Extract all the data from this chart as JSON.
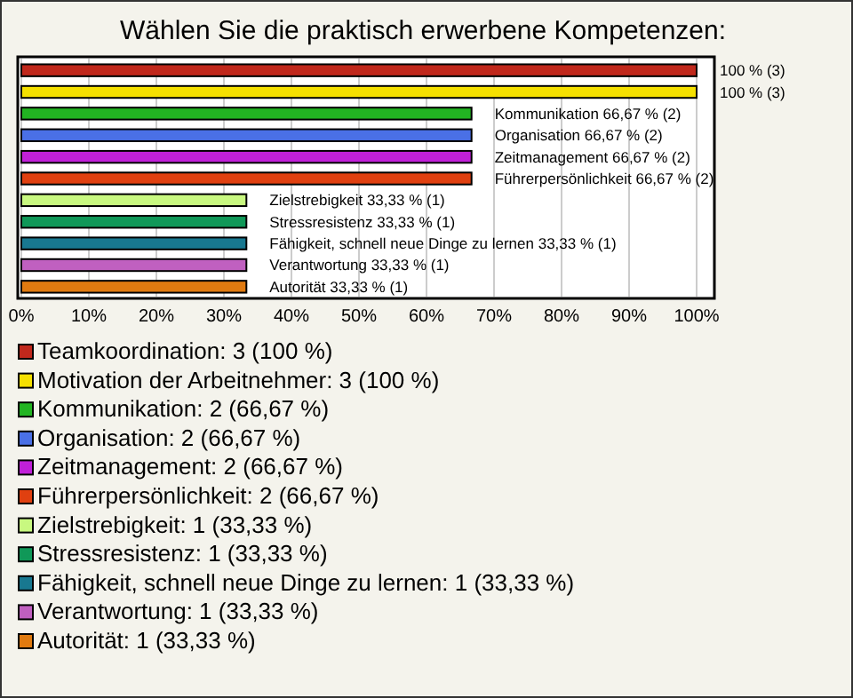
{
  "chart_data": {
    "type": "bar",
    "orientation": "horizontal",
    "title": "Wählen Sie die praktisch erwerbene Kompetenzen:",
    "categories": [
      null,
      null,
      null,
      null,
      null,
      null,
      null,
      null,
      null,
      null,
      null
    ],
    "series": [
      {
        "name": "Teamkoordination: 3 (100 %)",
        "color": "#c0281c",
        "values": [
          100,
          null,
          null,
          null,
          null,
          null,
          null,
          null,
          null,
          null,
          null
        ],
        "value_labels": [
          "100 % (3)",
          null,
          null,
          null,
          null,
          null,
          null,
          null,
          null,
          null,
          null
        ]
      },
      {
        "name": "Motivation der Arbeitnehmer: 3 (100 %)",
        "color": "#f5e000",
        "values": [
          null,
          100,
          null,
          null,
          null,
          null,
          null,
          null,
          null,
          null,
          null
        ],
        "value_labels": [
          null,
          "100 % (3)",
          null,
          null,
          null,
          null,
          null,
          null,
          null,
          null,
          null
        ]
      },
      {
        "name": "Kommunikation: 2 (66,67 %)",
        "color": "#22b422",
        "values": [
          null,
          null,
          66.67,
          null,
          null,
          null,
          null,
          null,
          null,
          null,
          null
        ],
        "value_labels": [
          null,
          null,
          "Kommunikation 66,67 % (2)",
          null,
          null,
          null,
          null,
          null,
          null,
          null,
          null
        ]
      },
      {
        "name": "Organisation: 2 (66,67 %)",
        "color": "#4a70e6",
        "values": [
          null,
          null,
          null,
          66.67,
          null,
          null,
          null,
          null,
          null,
          null,
          null
        ],
        "value_labels": [
          null,
          null,
          null,
          "Organisation 66,67 % (2)",
          null,
          null,
          null,
          null,
          null,
          null,
          null
        ]
      },
      {
        "name": "Zeitmanagement: 2 (66,67 %)",
        "color": "#c020d8",
        "values": [
          null,
          null,
          null,
          null,
          66.67,
          null,
          null,
          null,
          null,
          null,
          null
        ],
        "value_labels": [
          null,
          null,
          null,
          null,
          "Zeitmanagement 66,67 % (2)",
          null,
          null,
          null,
          null,
          null,
          null
        ]
      },
      {
        "name": "Führerpersönlichkeit: 2 (66,67 %)",
        "color": "#e04010",
        "values": [
          null,
          null,
          null,
          null,
          null,
          66.67,
          null,
          null,
          null,
          null,
          null
        ],
        "value_labels": [
          null,
          null,
          null,
          null,
          null,
          "Führerpersönlichkeit 66,67 % (2)",
          null,
          null,
          null,
          null,
          null
        ]
      },
      {
        "name": "Zielstrebigkeit: 1 (33,33 %)",
        "color": "#c8f880",
        "values": [
          null,
          null,
          null,
          null,
          null,
          null,
          33.33,
          null,
          null,
          null,
          null
        ],
        "value_labels": [
          null,
          null,
          null,
          null,
          null,
          null,
          "Zielstrebigkeit 33,33 % (1)",
          null,
          null,
          null,
          null
        ]
      },
      {
        "name": "Stressresistenz: 1 (33,33 %)",
        "color": "#109858",
        "values": [
          null,
          null,
          null,
          null,
          null,
          null,
          null,
          33.33,
          null,
          null,
          null
        ],
        "value_labels": [
          null,
          null,
          null,
          null,
          null,
          null,
          null,
          "Stressresistenz 33,33 % (1)",
          null,
          null,
          null
        ]
      },
      {
        "name": "Fähigkeit, schnell neue Dinge zu lernen: 1 (33,33 %)",
        "color": "#187890",
        "values": [
          null,
          null,
          null,
          null,
          null,
          null,
          null,
          null,
          33.33,
          null,
          null
        ],
        "value_labels": [
          null,
          null,
          null,
          null,
          null,
          null,
          null,
          null,
          "Fähigkeit, schnell neue Dinge zu lernen 33,33 % (1)",
          null,
          null
        ]
      },
      {
        "name": "Verantwortung: 1 (33,33 %)",
        "color": "#c060c0",
        "values": [
          null,
          null,
          null,
          null,
          null,
          null,
          null,
          null,
          null,
          33.33,
          null
        ],
        "value_labels": [
          null,
          null,
          null,
          null,
          null,
          null,
          null,
          null,
          null,
          "Verantwortung 33,33 % (1)",
          null
        ]
      },
      {
        "name": "Autorität: 1 (33,33 %)",
        "color": "#e07a10",
        "values": [
          null,
          null,
          null,
          null,
          null,
          null,
          null,
          null,
          null,
          null,
          33.33
        ],
        "value_labels": [
          null,
          null,
          null,
          null,
          null,
          null,
          null,
          null,
          null,
          null,
          "Autorität 33,33 % (1)"
        ]
      }
    ],
    "xlim": [
      0,
      100
    ],
    "xticks": [
      {
        "value": 0,
        "label": "0%"
      },
      {
        "value": 10,
        "label": "10%"
      },
      {
        "value": 20,
        "label": "20%"
      },
      {
        "value": 30,
        "label": "30%"
      },
      {
        "value": 40,
        "label": "40%"
      },
      {
        "value": 50,
        "label": "50%"
      },
      {
        "value": 60,
        "label": "60%"
      },
      {
        "value": 70,
        "label": "70%"
      },
      {
        "value": 80,
        "label": "80%"
      },
      {
        "value": 90,
        "label": "90%"
      },
      {
        "value": 100,
        "label": "100%"
      }
    ],
    "grid": "x",
    "legend": "bottom",
    "tick_labels": "x"
  }
}
